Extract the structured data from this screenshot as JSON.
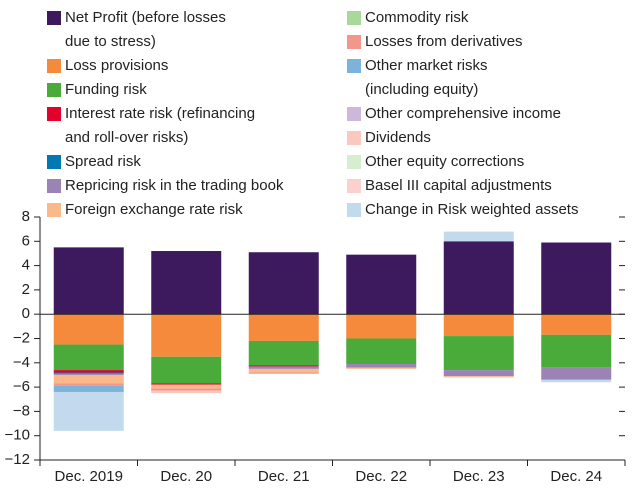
{
  "chart_data": {
    "type": "stacked_bar",
    "categories": [
      "Dec. 2019",
      "Dec. 20",
      "Dec. 21",
      "Dec. 22",
      "Dec. 23",
      "Dec. 24"
    ],
    "ylim": [
      -12,
      8
    ],
    "yticks": [
      {
        "value": -12,
        "label": "−12"
      },
      {
        "value": -10,
        "label": "−10"
      },
      {
        "value": -8,
        "label": "−8"
      },
      {
        "value": -6,
        "label": "−6"
      },
      {
        "value": -4,
        "label": "−4"
      },
      {
        "value": -2,
        "label": "−2"
      },
      0,
      2,
      4,
      6,
      8
    ],
    "series": [
      {
        "name": "Net Profit (before losses due to stress)",
        "color": "#3d1a5e",
        "values": [
          5.5,
          5.2,
          5.1,
          4.9,
          6.0,
          5.9
        ]
      },
      {
        "name": "Loss provisions",
        "color": "#f58a3c",
        "values": [
          -2.5,
          -3.5,
          -2.2,
          -2.0,
          -1.8,
          -1.7
        ]
      },
      {
        "name": "Funding risk",
        "color": "#4aab3a",
        "values": [
          -2.1,
          -2.2,
          -2.0,
          -2.1,
          -2.8,
          -2.7
        ]
      },
      {
        "name": "Interest rate risk (refinancing and roll-over risks)",
        "color": "#e3002b",
        "values": [
          -0.2,
          -0.1,
          -0.1,
          0,
          0,
          0
        ]
      },
      {
        "name": "Spread risk",
        "color": "#0078b4",
        "values": [
          -0.1,
          0,
          0,
          0,
          0,
          0
        ]
      },
      {
        "name": "Repricing risk in the trading book",
        "color": "#9b84b5",
        "values": [
          -0.1,
          0,
          -0.2,
          -0.3,
          -0.5,
          -1.0
        ]
      },
      {
        "name": "Foreign exchange rate risk",
        "color": "#f9b98a",
        "values": [
          -0.7,
          -0.3,
          -0.3,
          -0.1,
          -0.1,
          0
        ]
      },
      {
        "name": "Commodity risk",
        "color": "#a8d89a",
        "values": [
          0,
          0,
          0,
          0,
          0,
          0
        ]
      },
      {
        "name": "Losses from derivatives",
        "color": "#f4978a",
        "values": [
          -0.2,
          -0.2,
          -0.1,
          0,
          0,
          0
        ]
      },
      {
        "name": "Other market risks (including equity)",
        "color": "#7bb3db",
        "values": [
          -0.5,
          0,
          0,
          0,
          0,
          0
        ]
      },
      {
        "name": "Other comprehensive income",
        "color": "#cdb8dc",
        "values": [
          0,
          0,
          0,
          0,
          0,
          0
        ]
      },
      {
        "name": "Dividends",
        "color": "#fbc8bf",
        "values": [
          0,
          -0.2,
          0,
          0,
          0,
          0
        ]
      },
      {
        "name": "Other equity corrections",
        "color": "#d6edcf",
        "values": [
          0,
          0,
          0,
          0,
          0,
          0
        ]
      },
      {
        "name": "Basel III capital adjustments",
        "color": "#fcd0cc",
        "values": [
          0,
          0,
          0,
          0,
          0,
          0
        ]
      },
      {
        "name": "Change in Risk weighted assets",
        "color": "#c3daee",
        "values": [
          -3.2,
          0,
          0,
          0,
          0.8,
          -0.2
        ]
      }
    ]
  }
}
